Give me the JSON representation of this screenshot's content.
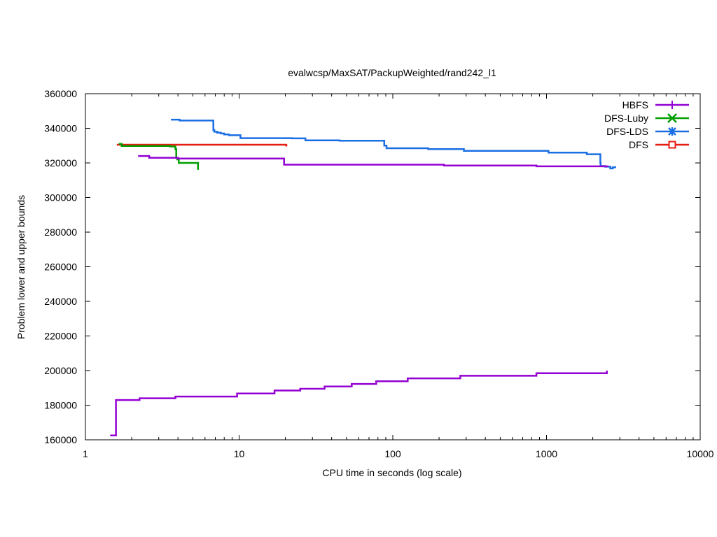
{
  "chart_data": {
    "type": "line",
    "title": "evalwcsp/MaxSAT/PackupWeighted/rand242_l1",
    "xlabel": "CPU time in seconds (log scale)",
    "ylabel": "Problem lower and upper bounds",
    "x_scale": "log",
    "xlim": [
      1,
      10000
    ],
    "ylim": [
      160000,
      360000
    ],
    "x_ticks": [
      1,
      10,
      100,
      1000,
      10000
    ],
    "x_tick_labels": [
      "1",
      "10",
      "100",
      "1000",
      "10000"
    ],
    "y_ticks": [
      160000,
      180000,
      200000,
      220000,
      240000,
      260000,
      280000,
      300000,
      320000,
      340000,
      360000
    ],
    "y_tick_labels": [
      "160000",
      "180000",
      "200000",
      "220000",
      "240000",
      "260000",
      "280000",
      "300000",
      "320000",
      "340000",
      "360000"
    ],
    "grid": false,
    "legend_position": "top-right",
    "legend": [
      {
        "label": "HBFS",
        "color": "#9400d3",
        "marker": "plus"
      },
      {
        "label": "DFS-Luby",
        "color": "#009e00",
        "marker": "cross"
      },
      {
        "label": "DFS-LDS",
        "color": "#1a6ee3",
        "marker": "star"
      },
      {
        "label": "DFS",
        "color": "#e51e10",
        "marker": "square"
      }
    ],
    "series": [
      {
        "legend": "DFS",
        "color": "#e51e10",
        "step": true,
        "points": [
          [
            1.6,
            330500
          ],
          [
            20.2,
            330300
          ],
          [
            20.3,
            329500
          ]
        ]
      },
      {
        "legend": "DFS-Luby",
        "color": "#009e00",
        "step": true,
        "points": [
          [
            1.65,
            331000
          ],
          [
            1.72,
            329800
          ],
          [
            3.55,
            329500
          ],
          [
            3.85,
            328000
          ],
          [
            3.9,
            323000
          ],
          [
            3.95,
            322000
          ],
          [
            4.05,
            320000
          ],
          [
            5.4,
            316000
          ]
        ]
      },
      {
        "legend": "DFS-LDS",
        "color": "#1a6ee3",
        "step": true,
        "points": [
          [
            3.6,
            345000
          ],
          [
            4.1,
            344500
          ],
          [
            6.8,
            339000
          ],
          [
            6.9,
            338000
          ],
          [
            7.2,
            337500
          ],
          [
            7.6,
            337000
          ],
          [
            8.0,
            336500
          ],
          [
            8.6,
            336000
          ],
          [
            10.2,
            334300
          ],
          [
            22.0,
            334200
          ],
          [
            27.0,
            333000
          ],
          [
            45.0,
            332800
          ],
          [
            88.0,
            330000
          ],
          [
            91.0,
            328500
          ],
          [
            170.0,
            328000
          ],
          [
            290.0,
            327000
          ],
          [
            1030.0,
            326000
          ],
          [
            1830.0,
            325000
          ],
          [
            2240.0,
            320000
          ],
          [
            2250.0,
            318200
          ],
          [
            2400.0,
            317800
          ],
          [
            2600.0,
            316800
          ],
          [
            2700.0,
            317500
          ],
          [
            2800.0,
            318000
          ]
        ]
      },
      {
        "legend": "HBFS",
        "color": "#9400d3",
        "step": true,
        "points": [
          [
            2.2,
            324000
          ],
          [
            2.6,
            323000
          ],
          [
            4.0,
            322500
          ],
          [
            19.6,
            319000
          ],
          [
            215.0,
            318500
          ],
          [
            860.0,
            318000
          ],
          [
            2500.0,
            318500
          ]
        ]
      },
      {
        "legend": "HBFS",
        "color": "#9400d3",
        "step": true,
        "points": [
          [
            1.45,
            162500
          ],
          [
            1.57,
            162500
          ],
          [
            1.58,
            183000
          ],
          [
            2.25,
            184000
          ],
          [
            3.85,
            185000
          ],
          [
            9.7,
            186800
          ],
          [
            17.0,
            188500
          ],
          [
            25.0,
            189500
          ],
          [
            36.0,
            190800
          ],
          [
            54.0,
            192300
          ],
          [
            78.0,
            193800
          ],
          [
            125.0,
            195500
          ],
          [
            275.0,
            197000
          ],
          [
            860.0,
            198500
          ],
          [
            2470.0,
            200000
          ]
        ]
      }
    ]
  }
}
